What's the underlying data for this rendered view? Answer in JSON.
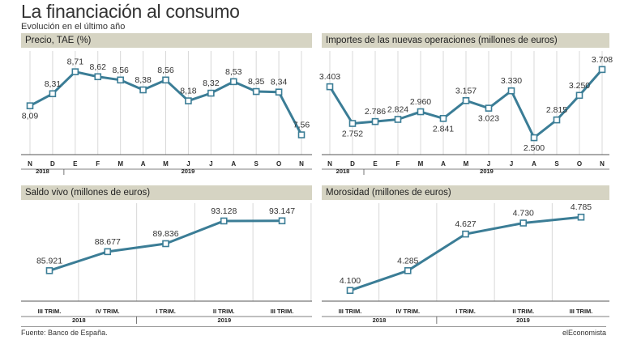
{
  "title": "La financiación al consumo",
  "subtitle": "Evolución en el último año",
  "source": "Fuente: Banco de España.",
  "brand": "elEconomista",
  "colors": {
    "line": "#3b7d96",
    "header_bg": "#d6d4c3",
    "marker_fill": "#ffffff"
  },
  "chart_data": [
    {
      "type": "line",
      "title": "Precio, TAE (%)",
      "categories": [
        "N",
        "D",
        "E",
        "F",
        "M",
        "A",
        "M",
        "J",
        "J",
        "A",
        "S",
        "O",
        "N"
      ],
      "values": [
        8.09,
        8.31,
        8.71,
        8.62,
        8.56,
        8.38,
        8.56,
        8.18,
        8.32,
        8.53,
        8.35,
        8.34,
        7.56
      ],
      "labels": [
        "8,09",
        "8,31",
        "8,71",
        "8,62",
        "8,56",
        "8,38",
        "8,56",
        "8,18",
        "8,32",
        "8,53",
        "8,35",
        "8,34",
        "7,56"
      ],
      "year_groups": [
        {
          "label": "2018",
          "span": 2
        },
        {
          "label": "2019",
          "span": 11
        }
      ],
      "ylim": [
        7.2,
        9.0
      ],
      "grid": "vertical"
    },
    {
      "type": "line",
      "title": "Importes de las nuevas operaciones (millones de euros)",
      "categories": [
        "N",
        "D",
        "E",
        "F",
        "M",
        "A",
        "M",
        "J",
        "J",
        "A",
        "S",
        "O",
        "N"
      ],
      "values": [
        3403,
        2752,
        2786,
        2824,
        2960,
        2841,
        3157,
        3023,
        3330,
        2500,
        2815,
        3250,
        3708
      ],
      "labels": [
        "3.403",
        "2.752",
        "2.786",
        "2.824",
        "2.960",
        "2.841",
        "3.157",
        "3.023",
        "3.330",
        "2.500",
        "2.815",
        "3.250",
        "3.708"
      ],
      "year_groups": [
        {
          "label": "2018",
          "span": 2
        },
        {
          "label": "2019",
          "span": 11
        }
      ],
      "ylim": [
        2200,
        3950
      ],
      "grid": "vertical"
    },
    {
      "type": "line",
      "title": "Saldo vivo (millones de euros)",
      "categories": [
        "III TRIM.",
        "IV TRIM.",
        "I TRIM.",
        "II TRIM.",
        "III TRIM."
      ],
      "values": [
        85921,
        88677,
        89836,
        93128,
        93147
      ],
      "labels": [
        "85.921",
        "88.677",
        "89.836",
        "93.128",
        "93.147"
      ],
      "year_groups": [
        {
          "label": "2018",
          "span": 2
        },
        {
          "label": "2019",
          "span": 3
        }
      ],
      "ylim": [
        81500,
        95000
      ],
      "grid": "vertical"
    },
    {
      "type": "line",
      "title": "Morosidad (millones de euros)",
      "categories": [
        "III TRIM.",
        "IV TRIM.",
        "I TRIM.",
        "II TRIM.",
        "III TRIM."
      ],
      "values": [
        4100,
        4285,
        4627,
        4730,
        4785
      ],
      "labels": [
        "4.100",
        "4.285",
        "4.627",
        "4.730",
        "4.785"
      ],
      "year_groups": [
        {
          "label": "2018",
          "span": 2
        },
        {
          "label": "2019",
          "span": 3
        }
      ],
      "ylim": [
        4000,
        4870
      ],
      "grid": "vertical"
    }
  ]
}
